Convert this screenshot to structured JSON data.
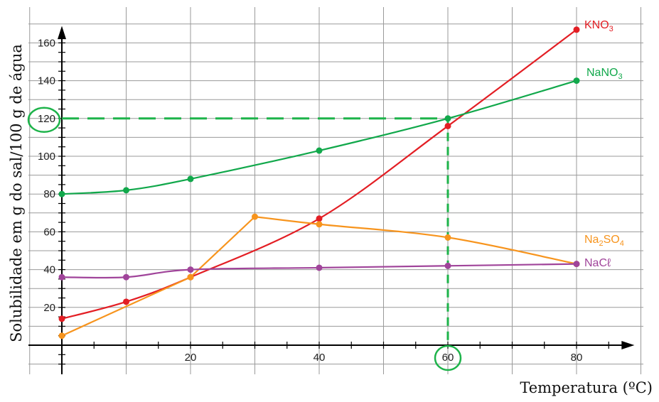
{
  "chart_data": {
    "type": "line",
    "xlabel": "Temperatura (ºC)",
    "ylabel": "Solubilidade em g do sal/100 g de água",
    "xlim": [
      0,
      90
    ],
    "ylim": [
      -15,
      175
    ],
    "x_ticks": [
      "20",
      "40",
      "60",
      "80"
    ],
    "y_ticks": [
      "20",
      "40",
      "60",
      "80",
      "100",
      "120",
      "140",
      "160"
    ],
    "grid": true,
    "series": [
      {
        "name": "KNO₃",
        "label_main": "KNO",
        "label_sub": "3",
        "label_tail": "",
        "color": "#e31e24",
        "points": [
          [
            0,
            14
          ],
          [
            10,
            23
          ],
          [
            20,
            36
          ],
          [
            40,
            67
          ],
          [
            60,
            116
          ],
          [
            80,
            167
          ]
        ]
      },
      {
        "name": "NaNO₃",
        "label_main": "NaNO",
        "label_sub": "3",
        "label_tail": "",
        "color": "#11a84b",
        "points": [
          [
            0,
            80
          ],
          [
            10,
            82
          ],
          [
            20,
            88
          ],
          [
            40,
            103
          ],
          [
            60,
            120
          ],
          [
            80,
            140
          ]
        ]
      },
      {
        "name": "Na₂SO₄",
        "label_main": "Na",
        "label_sub": "2",
        "label_tail": "SO",
        "label_sub2": "4",
        "color": "#f7941d",
        "points": [
          [
            0,
            5
          ],
          [
            20,
            36
          ],
          [
            30,
            68
          ],
          [
            40,
            64
          ],
          [
            60,
            57
          ],
          [
            80,
            43
          ]
        ]
      },
      {
        "name": "NaCℓ",
        "label_main": "NaCℓ",
        "label_sub": "",
        "label_tail": "",
        "color": "#a0449a",
        "points": [
          [
            0,
            36
          ],
          [
            10,
            36
          ],
          [
            20,
            40
          ],
          [
            40,
            41
          ],
          [
            60,
            42
          ],
          [
            80,
            43
          ]
        ]
      }
    ],
    "annotations": {
      "dashed_guide": {
        "x": 60,
        "y": 120,
        "color": "#1db34a"
      },
      "highlighted_x": "60",
      "highlighted_y": "120"
    }
  }
}
